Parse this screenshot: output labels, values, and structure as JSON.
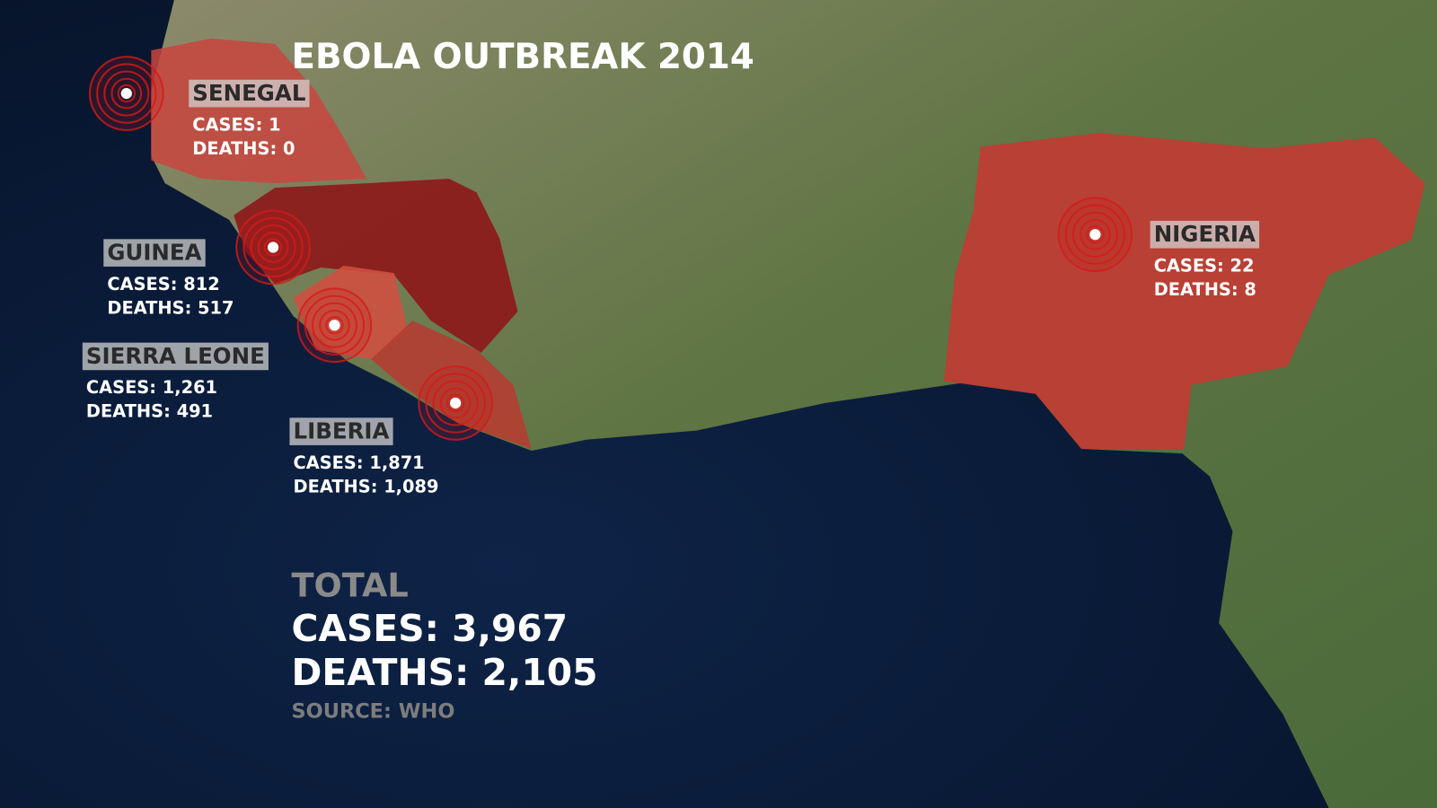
{
  "title": "EBOLA OUTBREAK 2014",
  "countries": [
    {
      "name": "SENEGAL",
      "cases": "CASES: 1",
      "deaths": "DEATHS: 0"
    },
    {
      "name": "GUINEA",
      "cases": "CASES: 812",
      "deaths": "DEATHS: 517"
    },
    {
      "name": "SIERRA LEONE",
      "cases": "CASES: 1,261",
      "deaths": "DEATHS: 491"
    },
    {
      "name": "LIBERIA",
      "cases": "CASES: 1,871",
      "deaths": "DEATHS: 1,089"
    },
    {
      "name": "NIGERIA",
      "cases": "CASES: 22",
      "deaths": "DEATHS: 8"
    }
  ],
  "total": {
    "heading": "TOTAL",
    "cases": "CASES: 3,967",
    "deaths": "DEATHS: 2,105"
  },
  "source": "SOURCE: WHO"
}
